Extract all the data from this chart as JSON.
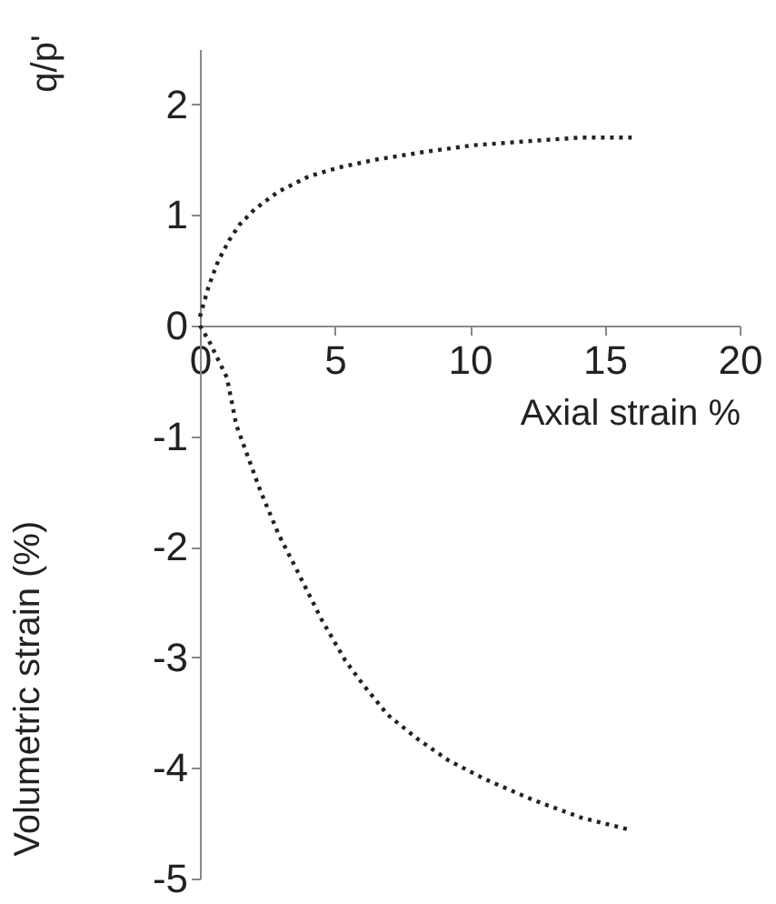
{
  "chart_data": {
    "type": "line",
    "xlabel": "Axial strain %",
    "ylabel": "Volumetric strain (%)",
    "annotations": [
      "q/p'"
    ],
    "xlim": [
      0,
      20
    ],
    "xticks": [
      0,
      5,
      10,
      15,
      20
    ],
    "ylim": [
      -5,
      2.5
    ],
    "yticks": [
      -5,
      -4,
      -3,
      -2,
      -1,
      0,
      1,
      2
    ],
    "grid": false,
    "marker": "none",
    "line_style": "dotted",
    "series": [
      {
        "color": "#222222",
        "x": [
          0,
          0.33,
          0.67,
          1.08,
          1.46,
          2.02,
          2.9,
          4.04,
          5.16,
          6.5,
          8.3,
          10.1,
          12.3,
          14.1,
          16.0
        ],
        "values": [
          0.08,
          0.36,
          0.58,
          0.77,
          0.91,
          1.05,
          1.21,
          1.35,
          1.43,
          1.5,
          1.57,
          1.63,
          1.67,
          1.7,
          1.7
        ]
      },
      {
        "color": "#222222",
        "x": [
          0,
          0.34,
          1.0,
          1.35,
          2.25,
          2.92,
          3.59,
          4.49,
          5.39,
          6.06,
          6.96,
          8.08,
          9.2,
          10.55,
          12.35,
          14.14,
          15.94
        ],
        "values": [
          0,
          -0.14,
          -0.47,
          -0.9,
          -1.5,
          -1.89,
          -2.21,
          -2.65,
          -3.03,
          -3.25,
          -3.52,
          -3.74,
          -3.93,
          -4.1,
          -4.29,
          -4.45,
          -4.56
        ]
      }
    ]
  }
}
